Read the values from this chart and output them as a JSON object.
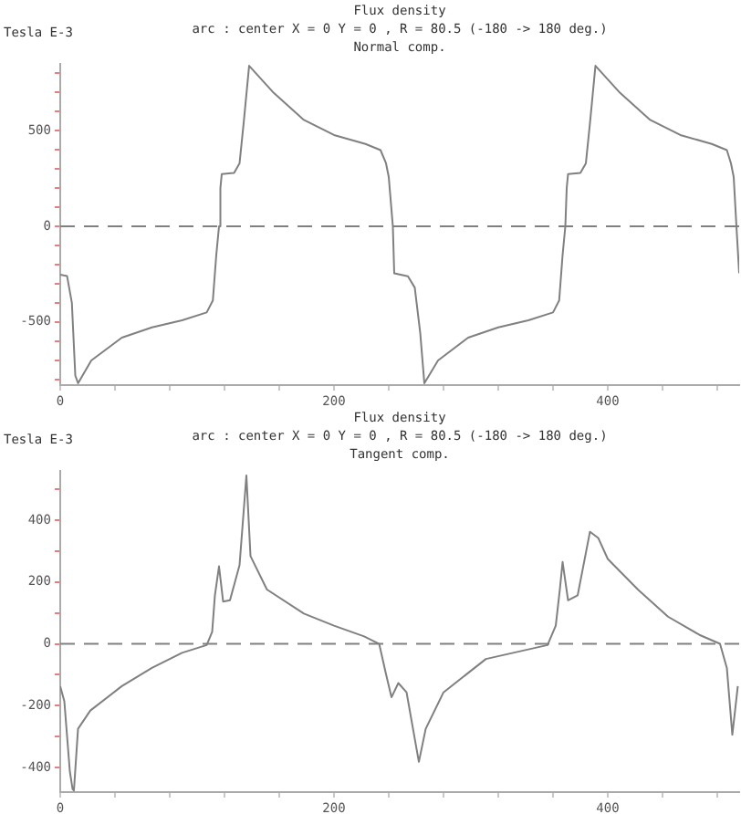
{
  "chart_data": [
    {
      "type": "line",
      "title": "Flux density",
      "subtitle": "arc : center X = 0 Y = 0 , R = 80.5 (-180 -> 180 deg.)",
      "annotations": [
        "Normal comp."
      ],
      "ylabel": "Tesla E-3",
      "x": [
        0,
        5,
        8.5,
        11,
        13,
        22.7,
        45,
        67,
        89,
        107,
        111.5,
        114,
        116,
        117,
        118,
        127,
        131,
        134,
        138,
        156,
        178,
        200,
        223,
        234,
        238,
        240,
        243,
        244,
        254,
        259,
        263,
        266,
        276,
        298,
        320,
        342,
        360,
        364.5,
        367,
        369,
        370,
        371,
        380,
        384,
        387,
        391,
        409,
        431,
        453,
        476,
        487,
        490,
        492,
        494,
        496
      ],
      "series": [
        {
          "color": "#808080",
          "values": [
            -252,
            -260,
            -400,
            -780,
            -820,
            -701,
            -582,
            -528,
            -491,
            -450,
            -387,
            -150,
            0,
            200,
            274,
            280,
            330,
            540,
            840,
            698,
            557,
            478,
            431,
            399,
            330,
            258,
            0,
            -245,
            -261,
            -320,
            -557,
            -820,
            -701,
            -582,
            -528,
            -491,
            -450,
            -387,
            -150,
            0,
            200,
            274,
            280,
            330,
            540,
            840,
            698,
            557,
            478,
            431,
            399,
            330,
            258,
            0,
            -245
          ]
        }
      ],
      "xlim": [
        0,
        496
      ],
      "xticks": [
        0,
        {
          "value": 40,
          "label": null
        },
        {
          "value": 80,
          "label": null
        },
        {
          "value": 120,
          "label": null
        },
        {
          "value": 160,
          "label": null
        },
        200,
        {
          "value": 240,
          "label": null
        },
        {
          "value": 280,
          "label": null
        },
        {
          "value": 320,
          "label": null
        },
        {
          "value": 360,
          "label": null
        },
        400,
        {
          "value": 440,
          "label": null
        },
        {
          "value": 480,
          "label": null
        }
      ],
      "ylim": [
        -830,
        850
      ],
      "yticks": [
        {
          "value": -800,
          "label": null
        },
        {
          "value": -700,
          "label": null
        },
        {
          "value": -600,
          "label": null
        },
        -500,
        {
          "value": -400,
          "label": null
        },
        {
          "value": -300,
          "label": null
        },
        {
          "value": -200,
          "label": null
        },
        {
          "value": -100,
          "label": null
        },
        0,
        {
          "value": 100,
          "label": null
        },
        {
          "value": 200,
          "label": null
        },
        {
          "value": 300,
          "label": null
        },
        {
          "value": 400,
          "label": null
        },
        500,
        {
          "value": 600,
          "label": null
        },
        {
          "value": 700,
          "label": null
        },
        {
          "value": 800,
          "label": null
        }
      ],
      "ref_lines": [
        {
          "axis": "y",
          "value": 0,
          "color": "#808080",
          "line_style": "dashed"
        }
      ],
      "grid": false,
      "legend": false,
      "marker": "none"
    },
    {
      "type": "line",
      "title": "Flux density",
      "subtitle": "arc : center X = 0 Y = 0 , R = 80.5 (-180 -> 180 deg.)",
      "annotations": [
        "Tangent comp."
      ],
      "ylabel": "Tesla E-3",
      "x": [
        0,
        3,
        7,
        9,
        10,
        13,
        22,
        45,
        67,
        89,
        107,
        111,
        113,
        116,
        119,
        124,
        131,
        136,
        139,
        151,
        178,
        200,
        222,
        233,
        238,
        242,
        247,
        253,
        262,
        267,
        280,
        311,
        356,
        362,
        365,
        367,
        371,
        378,
        387,
        393,
        400,
        422,
        444,
        467,
        482,
        487,
        491,
        493,
        495
      ],
      "series": [
        {
          "color": "#808080",
          "values": [
            -137,
            -186,
            -412,
            -470,
            -475,
            -275,
            -216,
            -137,
            -78,
            -29,
            -4,
            39,
            157,
            251,
            137,
            141,
            255,
            545,
            284,
            176,
            98,
            59,
            24,
            0,
            -98,
            -173,
            -127,
            -157,
            -382,
            -275,
            -157,
            -49,
            -4,
            59,
            176,
            265,
            141,
            157,
            363,
            343,
            275,
            176,
            88,
            29,
            0,
            -78,
            -294,
            -216,
            -137
          ]
        }
      ],
      "xlim": [
        0,
        496
      ],
      "xticks": [
        0,
        {
          "value": 40,
          "label": null
        },
        {
          "value": 80,
          "label": null
        },
        {
          "value": 120,
          "label": null
        },
        {
          "value": 160,
          "label": null
        },
        200,
        {
          "value": 240,
          "label": null
        },
        {
          "value": 280,
          "label": null
        },
        {
          "value": 320,
          "label": null
        },
        {
          "value": 360,
          "label": null
        },
        400,
        {
          "value": 440,
          "label": null
        },
        {
          "value": 480,
          "label": null
        }
      ],
      "ylim": [
        -480,
        560
      ],
      "yticks": [
        -400,
        {
          "value": -300,
          "label": null
        },
        -200,
        {
          "value": -100,
          "label": null
        },
        0,
        {
          "value": 100,
          "label": null
        },
        200,
        {
          "value": 300,
          "label": null
        },
        400,
        {
          "value": 500,
          "label": null
        }
      ],
      "ref_lines": [
        {
          "axis": "y",
          "value": 0,
          "color": "#808080",
          "line_style": "dashed"
        }
      ],
      "grid": false,
      "legend": false,
      "marker": "none"
    }
  ]
}
